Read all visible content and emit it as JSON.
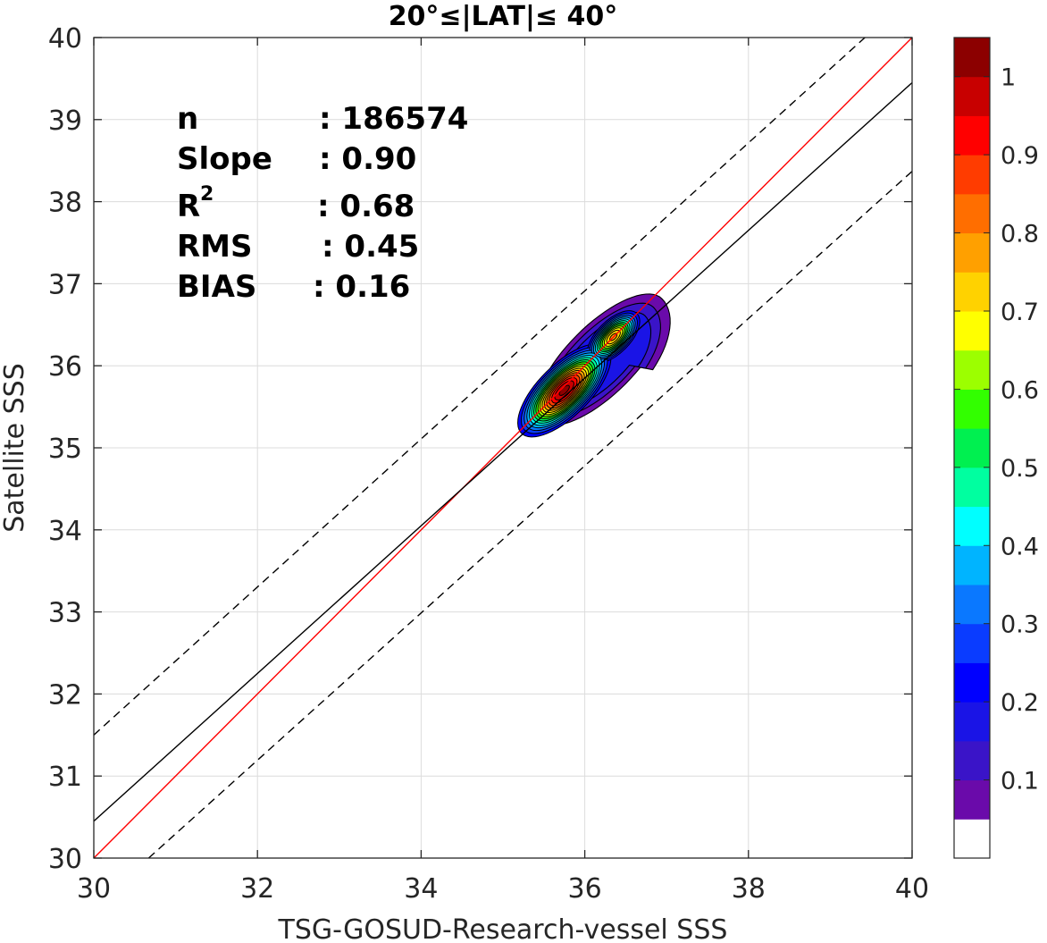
{
  "chart_data": {
    "type": "contour",
    "title": "20°≤|LAT|≤ 40°",
    "xlabel": "TSG-GOSUD-Research-vessel SSS",
    "ylabel": "Satellite SSS",
    "xlim": [
      30,
      40
    ],
    "ylim": [
      30,
      40
    ],
    "xticks": [
      "30",
      "32",
      "34",
      "36",
      "38",
      "40"
    ],
    "yticks": [
      "30",
      "31",
      "32",
      "33",
      "34",
      "35",
      "36",
      "37",
      "38",
      "39",
      "40"
    ],
    "grid": true,
    "stats": {
      "n_label": "n",
      "n_value": ": 186574",
      "slope_label": "Slope",
      "slope_value": ": 0.90",
      "r2_label": "R",
      "r2_sup": "2",
      "r2_value": ": 0.68",
      "rms_label": "RMS",
      "rms_value": ": 0.45",
      "bias_label": "BIAS",
      "bias_value": ": 0.16"
    },
    "lines": {
      "identity": {
        "x": [
          30,
          40
        ],
        "y": [
          30,
          40
        ],
        "color": "#ff0000",
        "style": "solid"
      },
      "fit": {
        "x": [
          30,
          40
        ],
        "y": [
          30.45,
          39.45
        ],
        "color": "#000000",
        "style": "solid"
      },
      "upper_bound": {
        "x": [
          30,
          40
        ],
        "y": [
          31.5,
          40.52
        ],
        "color": "#000000",
        "style": "dashed"
      },
      "lower_bound": {
        "x": [
          30.67,
          40
        ],
        "y": [
          30,
          38.37
        ],
        "color": "#000000",
        "style": "dashed"
      }
    },
    "density_peaks": [
      {
        "x": 35.75,
        "y": 35.7,
        "level": 1.0
      },
      {
        "x": 36.35,
        "y": 36.35,
        "level": 0.75
      }
    ],
    "colorbar": {
      "ticks": [
        "0.1",
        "0.2",
        "0.3",
        "0.4",
        "0.5",
        "0.6",
        "0.7",
        "0.8",
        "0.9",
        "1"
      ],
      "levels": [
        0,
        0.05,
        0.1,
        0.15,
        0.2,
        0.25,
        0.3,
        0.35,
        0.4,
        0.45,
        0.5,
        0.55,
        0.6,
        0.65,
        0.7,
        0.75,
        0.8,
        0.85,
        0.9,
        0.95,
        1.0
      ],
      "colors": [
        "#ffffff",
        "#6a0aaa",
        "#3a14c8",
        "#1a14e6",
        "#0000ff",
        "#0a3cff",
        "#0a78ff",
        "#00b4ff",
        "#00ffff",
        "#00ffa0",
        "#00f050",
        "#32ff00",
        "#9cff00",
        "#ffff00",
        "#ffd200",
        "#ffa000",
        "#ff6e00",
        "#ff3c00",
        "#ff0000",
        "#c80000",
        "#8c0000"
      ]
    }
  }
}
